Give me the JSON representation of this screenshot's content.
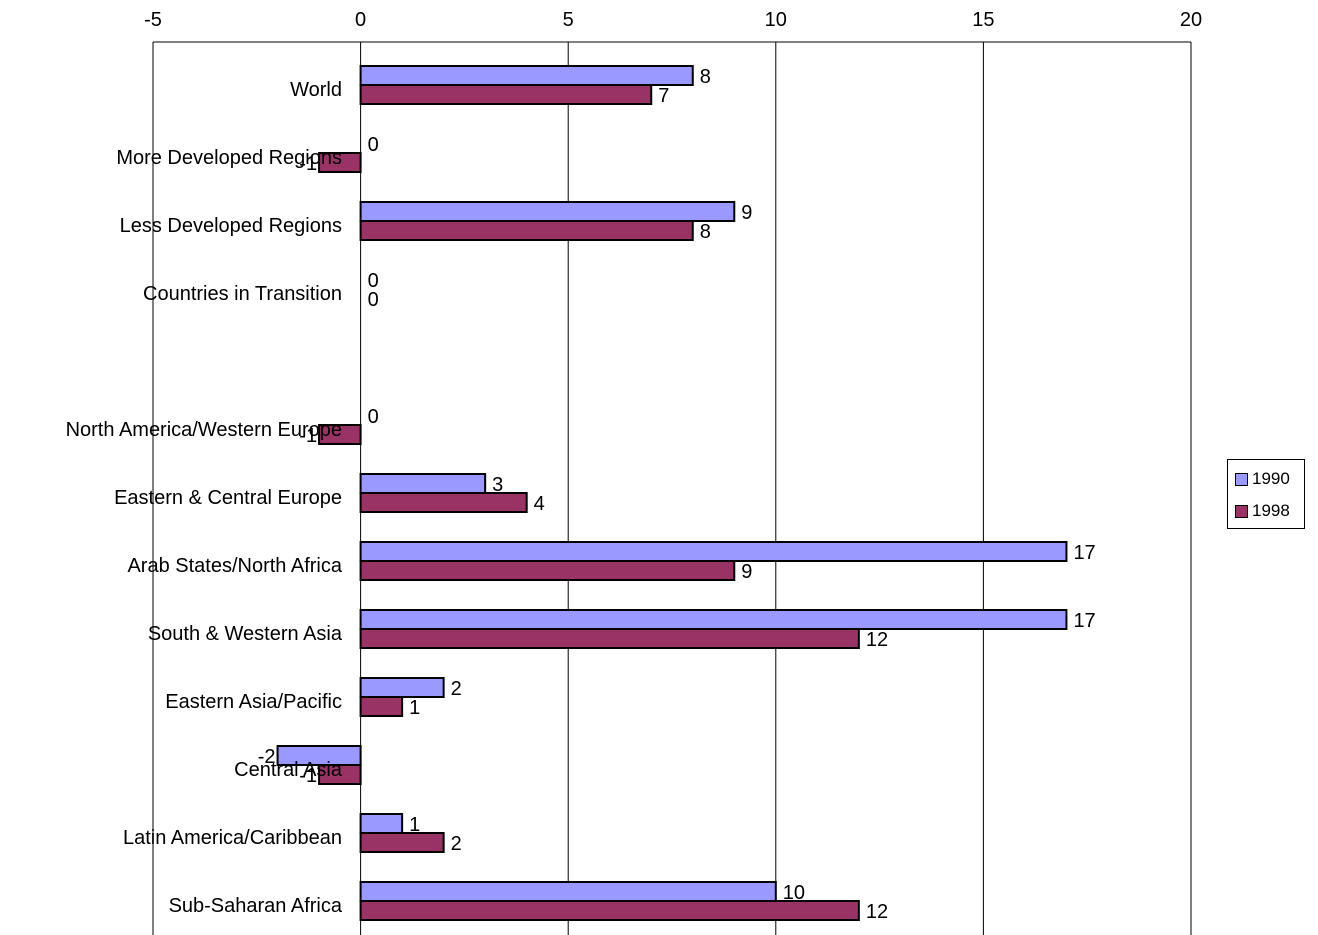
{
  "chart_data": {
    "type": "bar",
    "orientation": "horizontal",
    "title": "",
    "xlabel": "",
    "ylabel": "",
    "xlim": [
      -5,
      20
    ],
    "x_ticks": [
      -5,
      0,
      5,
      10,
      15,
      20
    ],
    "grid": true,
    "legend_position": "right",
    "categories": [
      "World",
      "More Developed Regions",
      "Less Developed Regions",
      "Countries in Transition",
      "",
      "North America/Western Europe",
      "Eastern & Central Europe",
      "Arab States/North Africa",
      "South & Western Asia",
      "Eastern Asia/Pacific",
      "Central Asia",
      "Latin America/Caribbean",
      "Sub-Saharan Africa"
    ],
    "series": [
      {
        "name": "1990",
        "color": "#9999ff",
        "values": [
          8,
          0,
          9,
          0,
          null,
          0,
          3,
          17,
          17,
          2,
          -2,
          1,
          10
        ]
      },
      {
        "name": "1998",
        "color": "#993366",
        "values": [
          7,
          -1,
          8,
          0,
          null,
          -1,
          4,
          9,
          12,
          1,
          -1,
          2,
          12
        ]
      }
    ]
  }
}
